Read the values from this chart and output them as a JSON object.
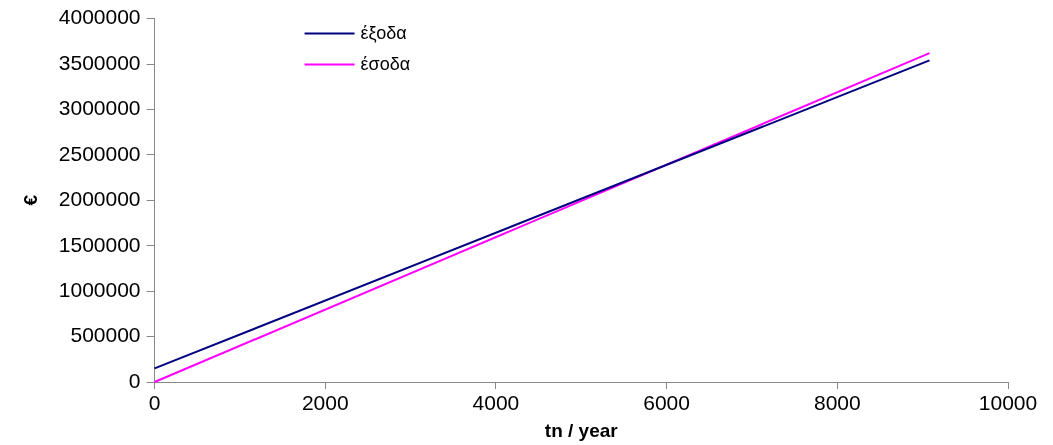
{
  "chart_data": {
    "type": "line",
    "xlabel": "tn / year",
    "ylabel": "€",
    "xlim": [
      0,
      10000
    ],
    "xticks": [
      0,
      2000,
      4000,
      6000,
      8000,
      10000
    ],
    "ylim": [
      0,
      4000000
    ],
    "yticks": [
      0,
      500000,
      1000000,
      1500000,
      2000000,
      2500000,
      3000000,
      3500000,
      4000000
    ],
    "x": [
      0,
      9080
    ],
    "grid": false,
    "legend": "top left",
    "marker": "none",
    "line_style": "solid",
    "series": [
      {
        "name": "έξοδα",
        "color": "#000080",
        "values": [
          150000,
          3540000
        ]
      },
      {
        "name": "έσοδα",
        "color": "#ff00ff",
        "values": [
          0,
          3620000
        ]
      }
    ]
  }
}
